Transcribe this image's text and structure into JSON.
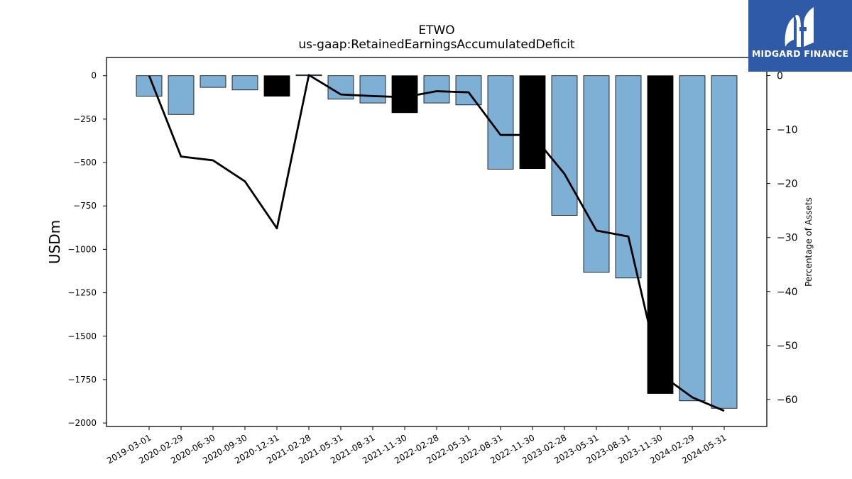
{
  "chart_data": {
    "type": "bar",
    "title": "ETWO",
    "subtitle": "us-gaap:RetainedEarningsAccumulatedDeficit",
    "ylabel": "USDm",
    "y2label": "Percentage of Assets",
    "ylim": [
      -2020,
      105
    ],
    "y2lim": [
      -65.0,
      3.35
    ],
    "yticks": [
      0,
      -250,
      -500,
      -750,
      -1000,
      -1250,
      -1500,
      -1750,
      -2000
    ],
    "y2ticks": [
      0,
      -10,
      -20,
      -30,
      -40,
      -50,
      -60
    ],
    "categories": [
      "2019-03-01",
      "2020-02-29",
      "2020-06-30",
      "2020-09-30",
      "2020-12-31",
      "2021-02-28",
      "2021-05-31",
      "2021-08-31",
      "2021-11-30",
      "2022-02-28",
      "2022-05-31",
      "2022-08-31",
      "2022-11-30",
      "2023-02-28",
      "2023-05-31",
      "2023-08-31",
      "2023-11-30",
      "2024-02-29",
      "2024-05-31"
    ],
    "values": [
      -118,
      -223,
      -67,
      -82,
      -118,
      5,
      -135,
      -157,
      -213,
      -157,
      -168,
      -538,
      -535,
      -804,
      -1132,
      -1165,
      -1830,
      -1872,
      -1915
    ],
    "highlight": [
      false,
      false,
      false,
      false,
      true,
      false,
      false,
      false,
      true,
      false,
      false,
      false,
      true,
      false,
      false,
      false,
      true,
      false,
      false
    ],
    "bar_color": "#7eafd4",
    "highlight_color": "#000000",
    "line": {
      "values": [
        0.0,
        -15.0,
        -15.7,
        -19.6,
        -28.3,
        0.1,
        -3.5,
        -3.8,
        -4.0,
        -2.9,
        -3.1,
        -11.0,
        -11.0,
        -18.2,
        -28.7,
        -29.8,
        -55.3,
        -59.6,
        -62.1
      ],
      "color": "#000000"
    }
  },
  "logo": {
    "text": "MIDGARD FINANCE",
    "color": "#2f5aa8"
  }
}
